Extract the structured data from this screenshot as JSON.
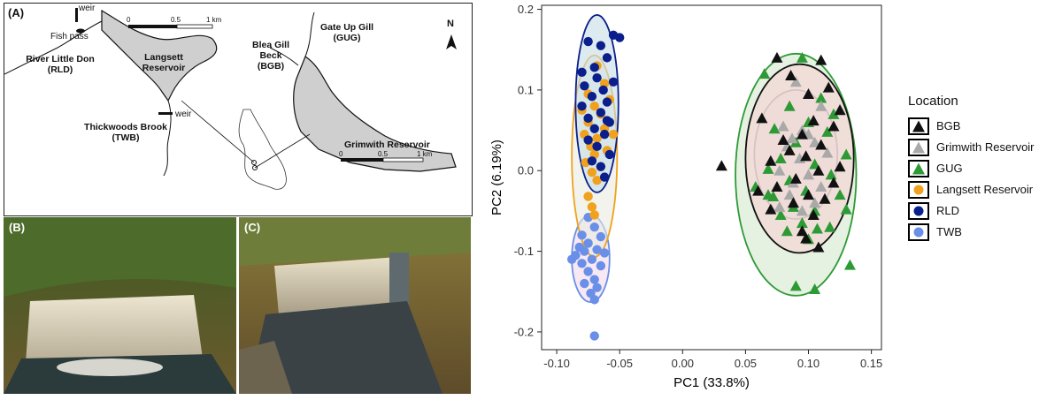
{
  "map": {
    "panel_label": "(A)",
    "labels": {
      "weir_top": "weir",
      "fish_pass": "Fish pass",
      "rld_line1": "River Little Don",
      "rld_line2": "(RLD)",
      "langsett_line1": "Langsett",
      "langsett_line2": "Reservoir",
      "weir_twb": "weir",
      "twb_line1": "Thickwoods Brook",
      "twb_line2": "(TWB)",
      "bgb_line1": "Blea Gill",
      "bgb_line2": "Beck",
      "bgb_line3": "(BGB)",
      "gug_line1": "Gate Up Gill",
      "gug_line2": "(GUG)",
      "grimwith": "Grimwith Reservoir",
      "north": "N",
      "scale1_0": "0",
      "scale1_mid": "0.5",
      "scale1_end": "1 km",
      "scale2_0": "0",
      "scale2_mid": "0.5",
      "scale2_end": "1 km"
    }
  },
  "photos": {
    "b_label": "(B)",
    "c_label": "(C)"
  },
  "legend": {
    "title": "Location",
    "items": [
      {
        "label": "BGB",
        "shape": "triangle",
        "color": "#111111"
      },
      {
        "label": "Grimwith Reservoir",
        "shape": "triangle",
        "color": "#a9a9a9"
      },
      {
        "label": "GUG",
        "shape": "triangle",
        "color": "#2e9a36"
      },
      {
        "label": "Langsett Reservoir",
        "shape": "circle",
        "color": "#f0a11d"
      },
      {
        "label": "RLD",
        "shape": "circle",
        "color": "#0b1f8c"
      },
      {
        "label": "TWB",
        "shape": "circle",
        "color": "#6a8fe8"
      }
    ]
  },
  "chart_data": {
    "type": "scatter",
    "xlabel": "PC1 (33.8%)",
    "ylabel": "PC2 (6.19%)",
    "xlim": [
      -0.112,
      0.158
    ],
    "ylim": [
      -0.222,
      0.205
    ],
    "xticks": [
      -0.1,
      -0.05,
      0.0,
      0.05,
      0.1,
      0.15
    ],
    "xtick_labels": [
      "-0.10",
      "-0.05",
      "0.00",
      "0.05",
      "0.10",
      "0.15"
    ],
    "yticks": [
      -0.2,
      -0.1,
      0.0,
      0.1,
      0.2
    ],
    "ytick_labels": [
      "-0.2",
      "-0.1",
      "0.0",
      "0.1",
      "0.2"
    ],
    "grid": false,
    "legend_position": "right",
    "series": [
      {
        "name": "BGB",
        "shape": "triangle",
        "color": "#111111",
        "ellipse": {
          "cx": 0.093,
          "cy": 0.015,
          "rx": 0.043,
          "ry": 0.117,
          "fill": "#f6d4d4",
          "stroke": "#111111"
        },
        "points": [
          [
            0.031,
            0.006
          ],
          [
            0.1,
            0.095
          ],
          [
            0.11,
            0.137
          ],
          [
            0.075,
            0.14
          ],
          [
            0.116,
            0.103
          ],
          [
            0.086,
            0.118
          ],
          [
            0.125,
            0.075
          ],
          [
            0.063,
            0.065
          ],
          [
            0.104,
            0.062
          ],
          [
            0.12,
            0.055
          ],
          [
            0.095,
            0.045
          ],
          [
            0.08,
            0.038
          ],
          [
            0.11,
            0.032
          ],
          [
            0.085,
            0.025
          ],
          [
            0.098,
            0.018
          ],
          [
            0.07,
            0.012
          ],
          [
            0.125,
            0.005
          ],
          [
            0.108,
            0.0
          ],
          [
            0.09,
            -0.01
          ],
          [
            0.12,
            -0.015
          ],
          [
            0.075,
            -0.02
          ],
          [
            0.06,
            -0.025
          ],
          [
            0.1,
            -0.03
          ],
          [
            0.113,
            -0.035
          ],
          [
            0.088,
            -0.04
          ],
          [
            0.07,
            -0.048
          ],
          [
            0.104,
            -0.055
          ],
          [
            0.095,
            -0.075
          ],
          [
            0.108,
            -0.095
          ],
          [
            0.098,
            -0.084
          ]
        ]
      },
      {
        "name": "Grimwith Reservoir",
        "shape": "triangle",
        "color": "#a9a9a9",
        "ellipse": {
          "cx": 0.09,
          "cy": 0.02,
          "rx": 0.033,
          "ry": 0.08,
          "fill": "#e2e2de",
          "stroke": "#a9a9a9"
        },
        "points": [
          [
            0.09,
            0.11
          ],
          [
            0.125,
            0.076
          ],
          [
            0.11,
            0.08
          ],
          [
            0.08,
            0.055
          ],
          [
            0.095,
            0.05
          ],
          [
            0.1,
            0.045
          ],
          [
            0.087,
            0.04
          ],
          [
            0.105,
            0.035
          ],
          [
            0.083,
            0.03
          ],
          [
            0.115,
            0.022
          ],
          [
            0.093,
            0.015
          ],
          [
            0.077,
            0.0
          ],
          [
            0.1,
            -0.005
          ],
          [
            0.088,
            -0.015
          ],
          [
            0.11,
            -0.02
          ],
          [
            0.085,
            -0.03
          ],
          [
            0.105,
            -0.04
          ],
          [
            0.077,
            -0.045
          ],
          [
            0.095,
            -0.05
          ]
        ]
      },
      {
        "name": "GUG",
        "shape": "triangle",
        "color": "#2e9a36",
        "ellipse": {
          "cx": 0.09,
          "cy": -0.005,
          "rx": 0.048,
          "ry": 0.15,
          "fill": "#d3e8cd",
          "stroke": "#2e9a36"
        },
        "points": [
          [
            0.095,
            0.14
          ],
          [
            0.065,
            0.12
          ],
          [
            0.11,
            0.09
          ],
          [
            0.085,
            0.08
          ],
          [
            0.12,
            0.07
          ],
          [
            0.1,
            0.06
          ],
          [
            0.073,
            0.052
          ],
          [
            0.115,
            0.048
          ],
          [
            0.09,
            0.035
          ],
          [
            0.13,
            0.02
          ],
          [
            0.078,
            0.015
          ],
          [
            0.105,
            0.008
          ],
          [
            0.068,
            0.002
          ],
          [
            0.118,
            -0.005
          ],
          [
            0.085,
            -0.012
          ],
          [
            0.058,
            -0.02
          ],
          [
            0.098,
            -0.025
          ],
          [
            0.072,
            -0.032
          ],
          [
            0.125,
            -0.03
          ],
          [
            0.088,
            -0.045
          ],
          [
            0.105,
            -0.05
          ],
          [
            0.078,
            -0.055
          ],
          [
            0.095,
            -0.065
          ],
          [
            0.083,
            -0.075
          ],
          [
            0.1,
            -0.085
          ],
          [
            0.117,
            -0.07
          ],
          [
            0.068,
            -0.03
          ],
          [
            0.133,
            -0.117
          ],
          [
            0.09,
            -0.143
          ],
          [
            0.105,
            -0.147
          ],
          [
            0.107,
            -0.072
          ],
          [
            0.13,
            -0.048
          ]
        ]
      },
      {
        "name": "Langsett Reservoir",
        "shape": "circle",
        "color": "#f0a11d",
        "ellipse": {
          "cx": -0.07,
          "cy": 0.018,
          "rx": 0.018,
          "ry": 0.125,
          "fill": "#e8ebe0",
          "stroke": "#f0a11d"
        },
        "points": [
          [
            -0.055,
            0.045
          ],
          [
            -0.068,
            0.13
          ],
          [
            -0.062,
            0.108
          ],
          [
            -0.075,
            0.095
          ],
          [
            -0.058,
            0.088
          ],
          [
            -0.07,
            0.08
          ],
          [
            -0.08,
            0.075
          ],
          [
            -0.065,
            0.07
          ],
          [
            -0.075,
            0.06
          ],
          [
            -0.062,
            0.052
          ],
          [
            -0.078,
            0.045
          ],
          [
            -0.068,
            0.04
          ],
          [
            -0.073,
            0.03
          ],
          [
            -0.06,
            0.025
          ],
          [
            -0.07,
            0.02
          ],
          [
            -0.077,
            0.01
          ],
          [
            -0.065,
            0.005
          ],
          [
            -0.072,
            -0.002
          ],
          [
            -0.068,
            -0.012
          ],
          [
            -0.075,
            -0.032
          ],
          [
            -0.072,
            -0.045
          ],
          [
            -0.07,
            -0.055
          ]
        ]
      },
      {
        "name": "RLD",
        "shape": "circle",
        "color": "#0b1f8c",
        "ellipse": {
          "cx": -0.068,
          "cy": 0.083,
          "rx": 0.017,
          "ry": 0.11,
          "fill": "#c6dde8",
          "stroke": "#0b1f8c"
        },
        "points": [
          [
            -0.075,
            0.16
          ],
          [
            -0.055,
            0.168
          ],
          [
            -0.05,
            0.165
          ],
          [
            -0.065,
            0.155
          ],
          [
            -0.06,
            0.14
          ],
          [
            -0.07,
            0.128
          ],
          [
            -0.08,
            0.122
          ],
          [
            -0.068,
            0.115
          ],
          [
            -0.055,
            0.11
          ],
          [
            -0.078,
            0.105
          ],
          [
            -0.063,
            0.1
          ],
          [
            -0.072,
            0.092
          ],
          [
            -0.06,
            0.085
          ],
          [
            -0.08,
            0.08
          ],
          [
            -0.065,
            0.072
          ],
          [
            -0.075,
            0.065
          ],
          [
            -0.058,
            0.06
          ],
          [
            -0.07,
            0.052
          ],
          [
            -0.062,
            0.045
          ],
          [
            -0.075,
            0.038
          ],
          [
            -0.068,
            0.03
          ],
          [
            -0.058,
            0.02
          ],
          [
            -0.072,
            0.012
          ],
          [
            -0.065,
            0.005
          ],
          [
            -0.062,
            -0.008
          ],
          [
            -0.06,
            0.062
          ]
        ]
      },
      {
        "name": "TWB",
        "shape": "circle",
        "color": "#6a8fe8",
        "ellipse": {
          "cx": -0.073,
          "cy": -0.109,
          "rx": 0.015,
          "ry": 0.054,
          "fill": "#f1d9eb",
          "stroke": "#6a8fe8"
        },
        "points": [
          [
            -0.07,
            -0.205
          ],
          [
            -0.075,
            -0.058
          ],
          [
            -0.07,
            -0.07
          ],
          [
            -0.08,
            -0.08
          ],
          [
            -0.065,
            -0.082
          ],
          [
            -0.075,
            -0.09
          ],
          [
            -0.082,
            -0.095
          ],
          [
            -0.068,
            -0.098
          ],
          [
            -0.078,
            -0.1
          ],
          [
            -0.088,
            -0.11
          ],
          [
            -0.072,
            -0.11
          ],
          [
            -0.08,
            -0.115
          ],
          [
            -0.065,
            -0.118
          ],
          [
            -0.075,
            -0.125
          ],
          [
            -0.07,
            -0.135
          ],
          [
            -0.078,
            -0.14
          ],
          [
            -0.068,
            -0.145
          ],
          [
            -0.073,
            -0.152
          ],
          [
            -0.07,
            -0.16
          ],
          [
            -0.085,
            -0.105
          ],
          [
            -0.062,
            -0.102
          ]
        ]
      }
    ]
  }
}
